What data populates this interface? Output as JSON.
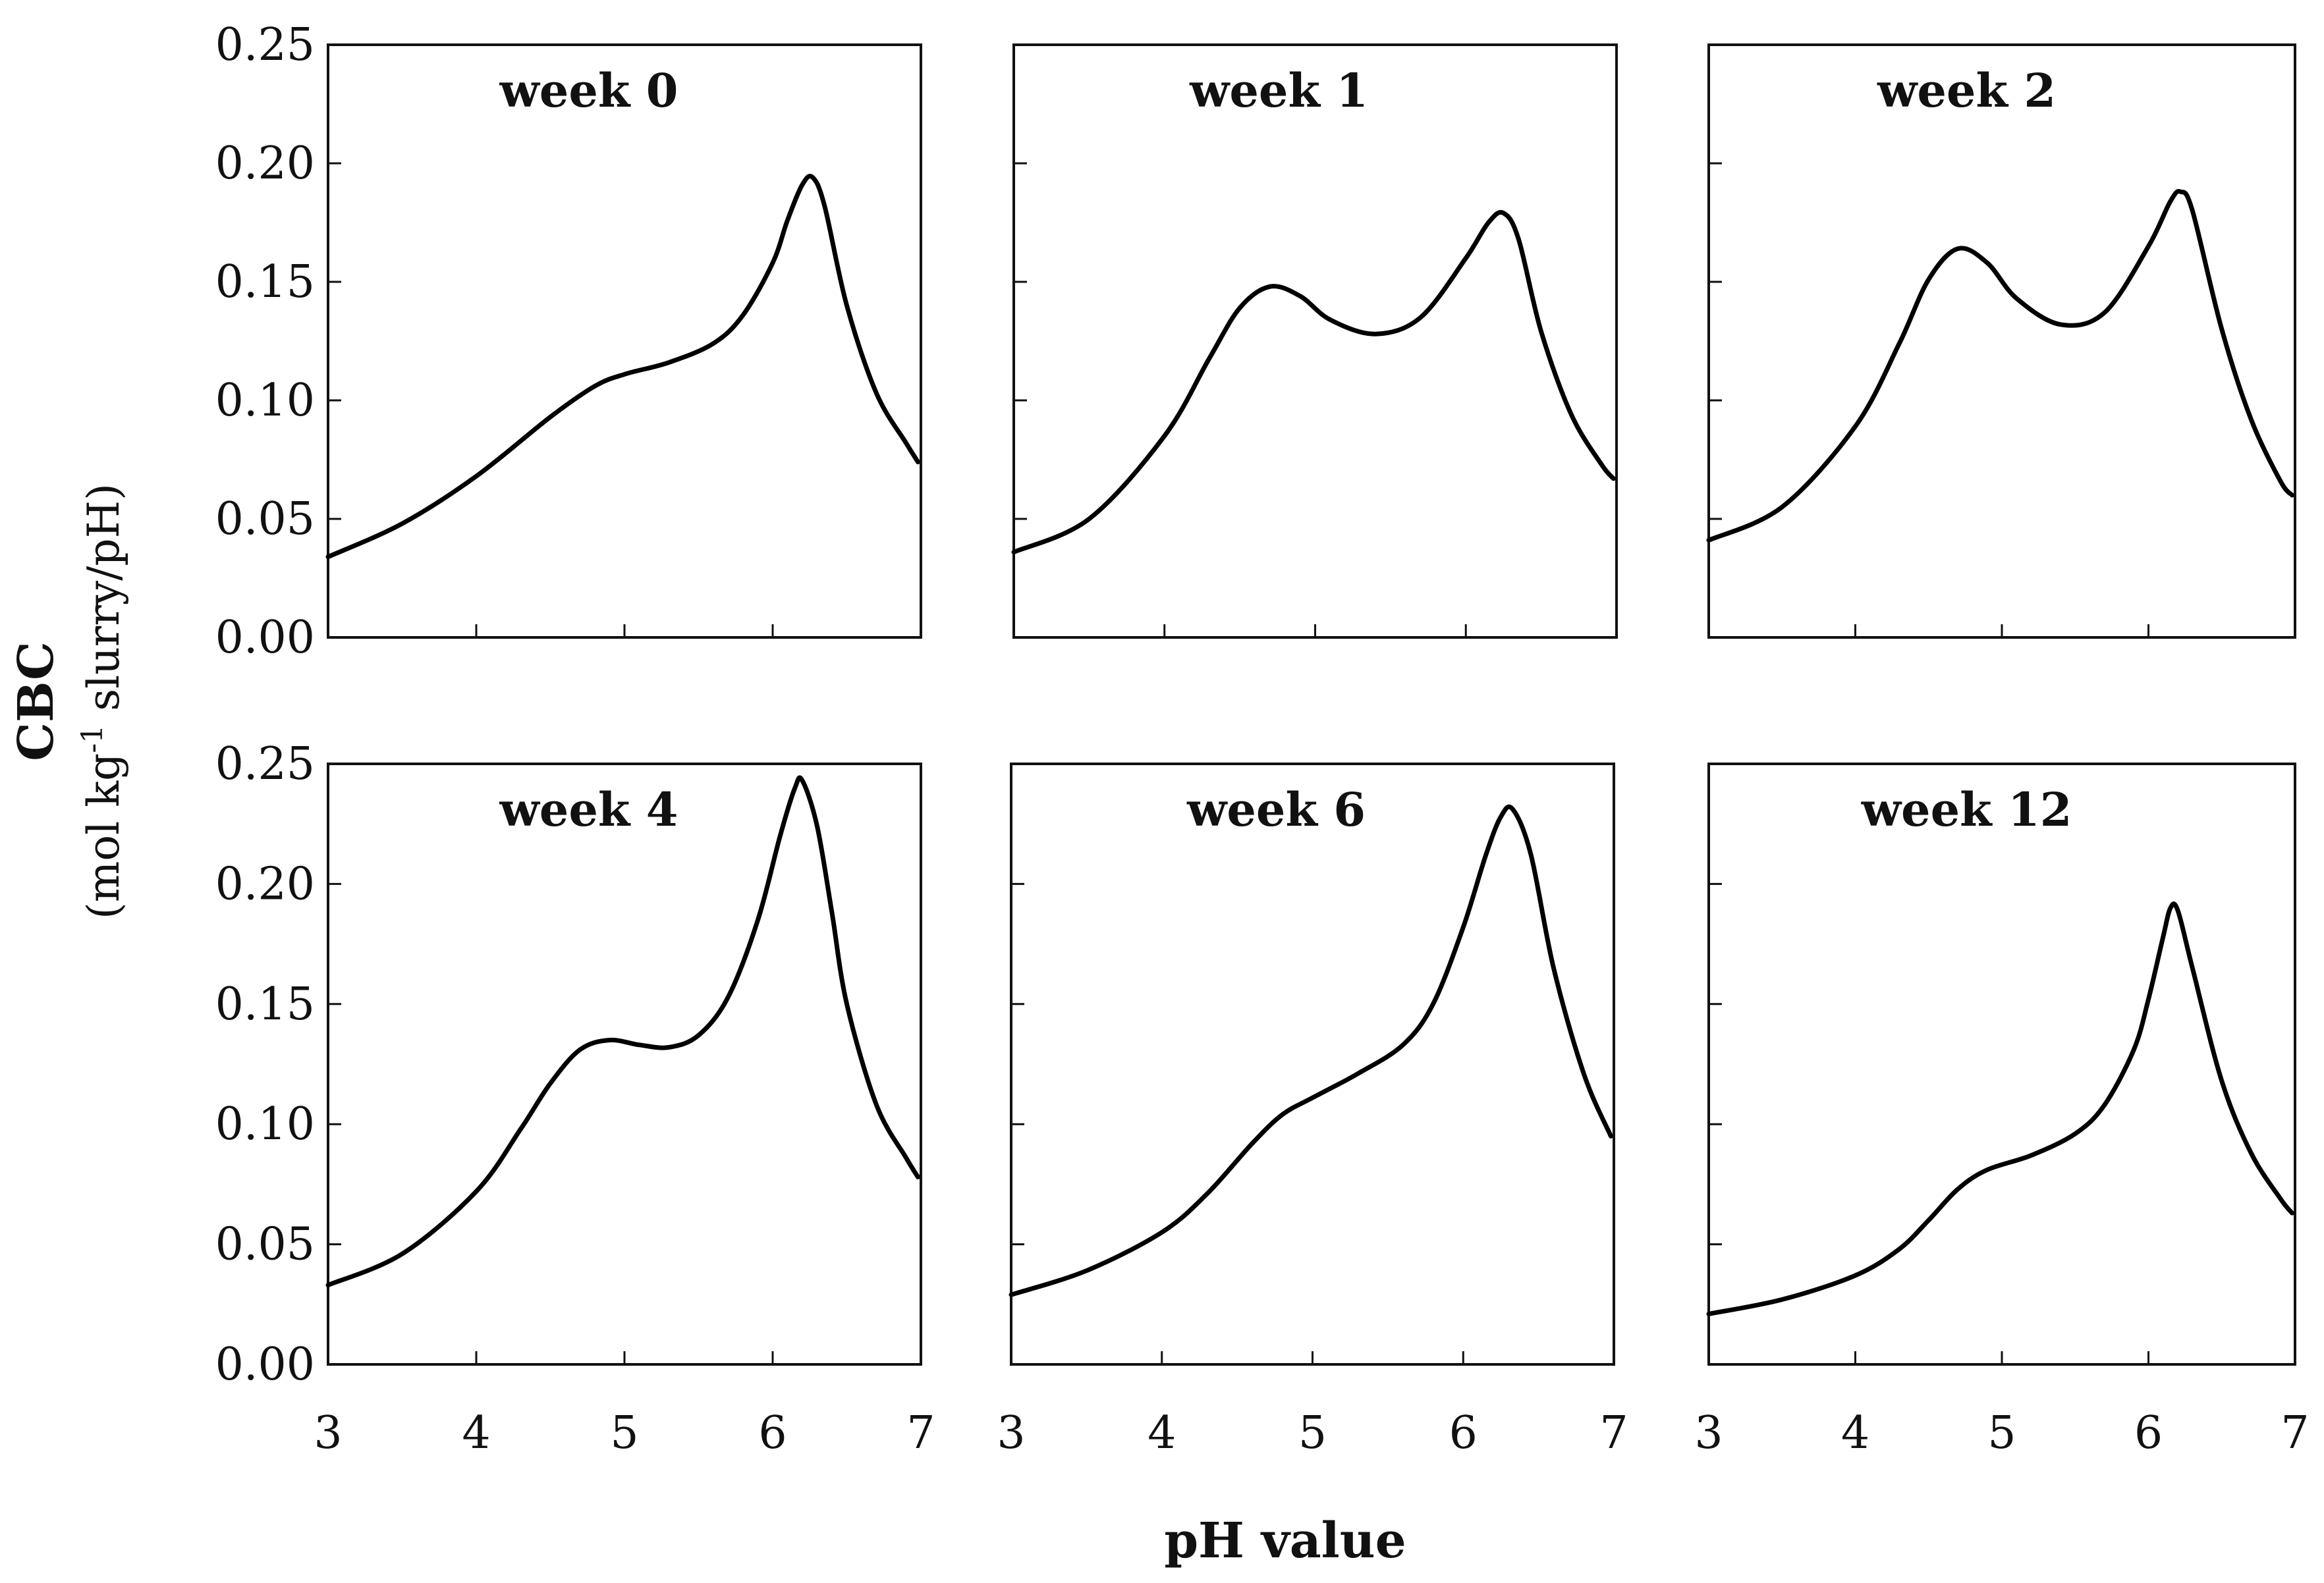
{
  "chart_data": {
    "type": "line",
    "xlabel": "pH value",
    "ylabel_main": "CBC",
    "ylabel_unit_before": "(mol kg",
    "ylabel_unit_sup": "-1",
    "ylabel_unit_after": " slurry/pH)",
    "xlim": [
      3,
      7
    ],
    "ylim": [
      0,
      0.25
    ],
    "xticks": [
      "3",
      "4",
      "5",
      "6",
      "7"
    ],
    "yticks": [
      "0.00",
      "0.05",
      "0.10",
      "0.15",
      "0.20",
      "0.25"
    ],
    "panels": [
      {
        "title": "week 0",
        "x": [
          3.0,
          3.5,
          4.0,
          4.5,
          4.8,
          5.0,
          5.3,
          5.6,
          5.8,
          6.0,
          6.1,
          6.2,
          6.27,
          6.35,
          6.5,
          6.7,
          6.9,
          6.98
        ],
        "y": [
          0.034,
          0.048,
          0.068,
          0.093,
          0.106,
          0.111,
          0.116,
          0.124,
          0.136,
          0.158,
          0.176,
          0.191,
          0.194,
          0.182,
          0.14,
          0.103,
          0.082,
          0.074
        ]
      },
      {
        "title": "week 1",
        "x": [
          3.0,
          3.5,
          4.0,
          4.3,
          4.5,
          4.7,
          4.9,
          5.1,
          5.4,
          5.7,
          6.0,
          6.15,
          6.25,
          6.35,
          6.5,
          6.7,
          6.9,
          6.98
        ],
        "y": [
          0.036,
          0.05,
          0.085,
          0.118,
          0.139,
          0.148,
          0.144,
          0.134,
          0.128,
          0.135,
          0.16,
          0.175,
          0.179,
          0.168,
          0.129,
          0.094,
          0.073,
          0.067
        ]
      },
      {
        "title": "week 2",
        "x": [
          3.0,
          3.5,
          4.0,
          4.3,
          4.5,
          4.7,
          4.9,
          5.1,
          5.4,
          5.7,
          6.0,
          6.15,
          6.22,
          6.3,
          6.5,
          6.7,
          6.9,
          6.98
        ],
        "y": [
          0.041,
          0.055,
          0.089,
          0.124,
          0.151,
          0.164,
          0.158,
          0.143,
          0.132,
          0.137,
          0.165,
          0.184,
          0.188,
          0.18,
          0.13,
          0.092,
          0.066,
          0.06
        ]
      },
      {
        "title": "week 4",
        "x": [
          3.0,
          3.5,
          4.0,
          4.3,
          4.5,
          4.7,
          4.9,
          5.1,
          5.3,
          5.5,
          5.7,
          5.9,
          6.05,
          6.15,
          6.2,
          6.3,
          6.4,
          6.5,
          6.7,
          6.9,
          6.98
        ],
        "y": [
          0.033,
          0.046,
          0.072,
          0.098,
          0.117,
          0.131,
          0.135,
          0.133,
          0.132,
          0.137,
          0.153,
          0.185,
          0.22,
          0.24,
          0.243,
          0.224,
          0.188,
          0.15,
          0.108,
          0.086,
          0.078
        ]
      },
      {
        "title": "week 6",
        "x": [
          3.0,
          3.5,
          4.0,
          4.3,
          4.6,
          4.8,
          5.0,
          5.3,
          5.6,
          5.8,
          6.0,
          6.15,
          6.25,
          6.33,
          6.45,
          6.6,
          6.8,
          6.98
        ],
        "y": [
          0.029,
          0.039,
          0.055,
          0.071,
          0.092,
          0.104,
          0.111,
          0.121,
          0.133,
          0.15,
          0.182,
          0.212,
          0.228,
          0.231,
          0.212,
          0.165,
          0.121,
          0.095
        ]
      },
      {
        "title": "week 12",
        "x": [
          3.0,
          3.5,
          4.0,
          4.3,
          4.5,
          4.7,
          4.9,
          5.2,
          5.5,
          5.7,
          5.9,
          6.0,
          6.1,
          6.15,
          6.2,
          6.3,
          6.5,
          6.7,
          6.9,
          6.98
        ],
        "y": [
          0.021,
          0.027,
          0.037,
          0.048,
          0.06,
          0.073,
          0.081,
          0.087,
          0.096,
          0.108,
          0.131,
          0.152,
          0.178,
          0.19,
          0.189,
          0.165,
          0.118,
          0.088,
          0.069,
          0.063
        ]
      }
    ]
  }
}
